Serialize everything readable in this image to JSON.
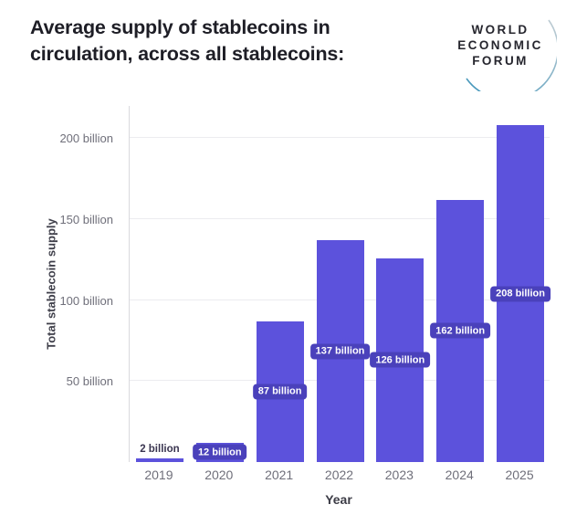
{
  "header": {
    "title_line1": "Average supply of stablecoins in",
    "title_line2": "circulation, across all stablecoins:",
    "logo": {
      "line1": "WORLD",
      "line2": "ECONOMIC",
      "line3": "FORUM"
    }
  },
  "chart_data": {
    "type": "bar",
    "title": "Average supply of stablecoins in circulation, across all stablecoins:",
    "xlabel": "Year",
    "ylabel": "Total stablecoin supply",
    "categories": [
      "2019",
      "2020",
      "2021",
      "2022",
      "2023",
      "2024",
      "2025"
    ],
    "values": [
      2,
      12,
      87,
      137,
      126,
      162,
      208
    ],
    "value_labels": [
      "2 billion",
      "12 billion",
      "87 billion",
      "137 billion",
      "126 billion",
      "162 billion",
      "208 billion"
    ],
    "label_styles": [
      "above",
      "badge",
      "badge",
      "badge",
      "badge",
      "badge",
      "badge"
    ],
    "yticks": [
      50,
      100,
      150,
      200
    ],
    "ytick_labels": [
      "50 billion",
      "100 billion",
      "150 billion",
      "200 billion"
    ],
    "ylim": [
      0,
      220
    ],
    "grid": true,
    "legend": "none",
    "colors": {
      "bar": "#5c52dc",
      "badge_bg": "#4a41bb",
      "badge_text": "#ffffff",
      "above_label": "#3a3550",
      "grid": "#ececef",
      "axis_line": "#d9d9de",
      "tick_text": "#6f6f7a",
      "axis_title_text": "#3f3f4a",
      "title_text": "#1e1e26",
      "logo_arc": "#4597bb"
    }
  }
}
